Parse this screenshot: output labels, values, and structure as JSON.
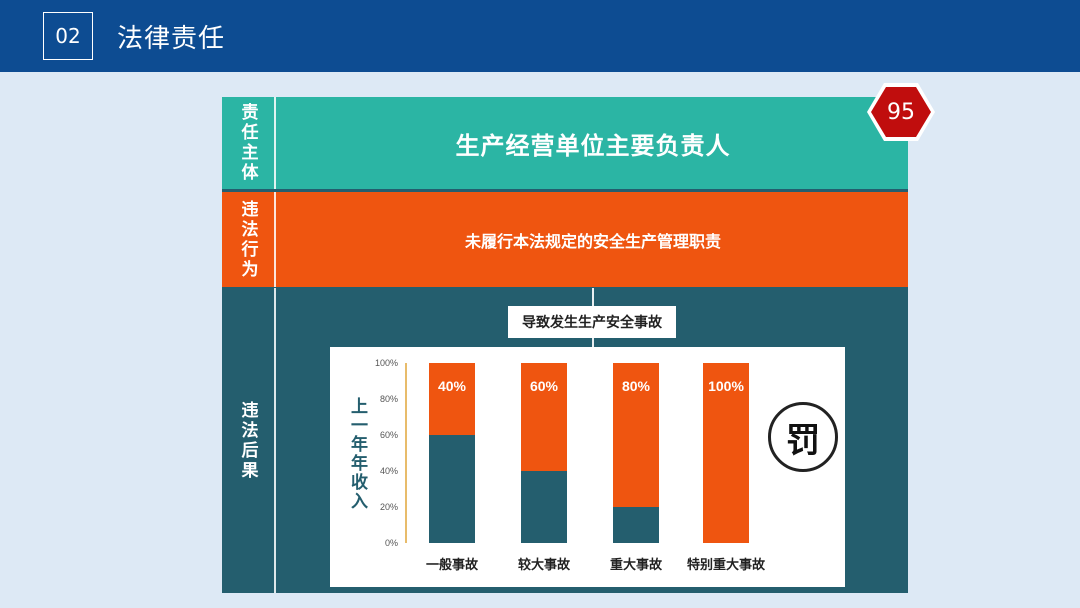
{
  "header": {
    "section_number": "02",
    "section_title": "法律责任"
  },
  "badge": {
    "text": "95",
    "color": "#c00d0d"
  },
  "rows": {
    "subject": {
      "label": "责任主体",
      "text": "生产经营单位主要负责人",
      "color": "#2bb5a4"
    },
    "act": {
      "label": "违法行为",
      "text": "未履行本法规定的安全生产管理职责",
      "color": "#ef5510"
    },
    "result": {
      "label": "违法后果",
      "cause": "导致发生生产安全事故",
      "color": "#245e6e"
    }
  },
  "penalty_icon": {
    "name": "fa-icon",
    "text": "罚"
  },
  "colors": {
    "bar_base": "#245e6e",
    "bar_fine": "#ef5510",
    "accent": "#0d4c92"
  },
  "chart_data": {
    "type": "bar",
    "stacked": true,
    "categories": [
      "一般事故",
      "较大事故",
      "重大事故",
      "特别重大事故"
    ],
    "series": [
      {
        "name": "",
        "values": [
          60,
          40,
          20,
          0
        ]
      },
      {
        "name": "",
        "values": [
          40,
          60,
          80,
          100
        ]
      }
    ],
    "data_labels": [
      "40%",
      "60%",
      "80%",
      "100%"
    ],
    "ylabel": "上一年年收入",
    "yticks": [
      "0%",
      "20%",
      "40%",
      "60%",
      "80%",
      "100%"
    ],
    "ylim": [
      0,
      100
    ],
    "grid": false
  }
}
